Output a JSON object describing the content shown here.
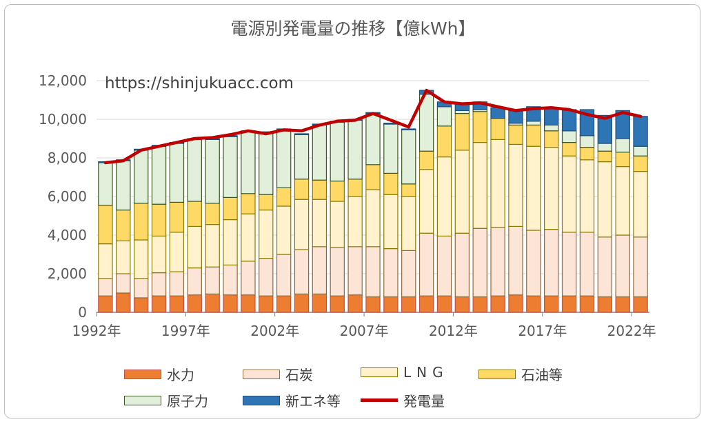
{
  "chart_data": {
    "type": "bar",
    "subtype": "stacked-bar-with-line",
    "title": "電源別発電量の推移【億kWh】",
    "watermark": "https://shinjukuacc.com",
    "ylim": [
      0,
      12000
    ],
    "yticks": [
      "0",
      "2,000",
      "4,000",
      "6,000",
      "8,000",
      "10,000",
      "12,000"
    ],
    "ytick_values": [
      0,
      2000,
      4000,
      6000,
      8000,
      10000,
      12000
    ],
    "x_tick_labels": [
      {
        "index": 0,
        "label": "1992年"
      },
      {
        "index": 5,
        "label": "1997年"
      },
      {
        "index": 10,
        "label": "2002年"
      },
      {
        "index": 15,
        "label": "2007年"
      },
      {
        "index": 20,
        "label": "2012年"
      },
      {
        "index": 25,
        "label": "2017年"
      },
      {
        "index": 30,
        "label": "2022年"
      }
    ],
    "categories": [
      "1992",
      "1993",
      "1994",
      "1995",
      "1996",
      "1997",
      "1998",
      "1999",
      "2000",
      "2001",
      "2002",
      "2003",
      "2004",
      "2005",
      "2006",
      "2007",
      "2008",
      "2009",
      "2010",
      "2011",
      "2012",
      "2013",
      "2014",
      "2015",
      "2016",
      "2017",
      "2018",
      "2019",
      "2020",
      "2021",
      "2022"
    ],
    "series": [
      {
        "name": "水力",
        "color": "#ED7D31",
        "edge": "#C0504D",
        "values": [
          850,
          1000,
          750,
          850,
          850,
          900,
          950,
          900,
          900,
          850,
          850,
          950,
          950,
          850,
          900,
          800,
          800,
          800,
          850,
          850,
          800,
          800,
          850,
          900,
          850,
          850,
          850,
          850,
          800,
          800,
          800
        ]
      },
      {
        "name": "石炭",
        "color": "#FCE4D6",
        "edge": "#8B6A3E",
        "values": [
          900,
          1000,
          1000,
          1200,
          1250,
          1400,
          1400,
          1550,
          1750,
          1950,
          2150,
          2300,
          2450,
          2500,
          2500,
          2600,
          2500,
          2400,
          3250,
          3100,
          3300,
          3550,
          3550,
          3550,
          3400,
          3450,
          3300,
          3300,
          3100,
          3200,
          3100
        ]
      },
      {
        "name": "LNG",
        "color": "#FFF2CC",
        "edge": "#8B7A00",
        "values": [
          1800,
          1700,
          2000,
          1900,
          2050,
          2150,
          2200,
          2350,
          2450,
          2500,
          2500,
          2600,
          2450,
          2400,
          2600,
          2950,
          2800,
          2800,
          3300,
          4100,
          4300,
          4450,
          4550,
          4250,
          4350,
          4250,
          3950,
          3750,
          3900,
          3550,
          3400
        ]
      },
      {
        "name": "石油等",
        "color": "#FFD966",
        "edge": "#8B7A00",
        "values": [
          2000,
          1600,
          1900,
          1650,
          1550,
          1300,
          1100,
          1150,
          1050,
          800,
          950,
          1050,
          1000,
          1050,
          900,
          1300,
          1100,
          650,
          950,
          1600,
          1900,
          1600,
          1100,
          1000,
          1100,
          850,
          700,
          650,
          550,
          750,
          800
        ]
      },
      {
        "name": "原子力",
        "color": "#E2EFDA",
        "edge": "#375623",
        "values": [
          2200,
          2550,
          2750,
          3000,
          3050,
          3200,
          3300,
          3150,
          3200,
          3200,
          3000,
          2300,
          2850,
          3050,
          3050,
          2650,
          2550,
          2800,
          2950,
          1000,
          150,
          100,
          0,
          100,
          200,
          300,
          600,
          600,
          400,
          700,
          500
        ]
      },
      {
        "name": "新エネ等",
        "color": "#2E75B6",
        "edge": "#1F4E79",
        "values": [
          50,
          50,
          50,
          50,
          50,
          50,
          50,
          50,
          50,
          50,
          50,
          50,
          50,
          50,
          50,
          50,
          50,
          50,
          200,
          250,
          350,
          400,
          550,
          650,
          750,
          900,
          1100,
          1350,
          1450,
          1450,
          1550
        ]
      }
    ],
    "line_series": {
      "name": "発電量",
      "color": "#C00000",
      "values": [
        7750,
        7850,
        8400,
        8600,
        8800,
        9000,
        9050,
        9200,
        9400,
        9250,
        9450,
        9400,
        9700,
        9900,
        9950,
        10300,
        9950,
        9600,
        11500,
        10900,
        10800,
        10850,
        10650,
        10450,
        10550,
        10600,
        10500,
        10250,
        10050,
        10350,
        10150
      ]
    },
    "legend": [
      "水力",
      "石炭",
      "LNG",
      "石油等",
      "原子力",
      "新エネ等",
      "発電量"
    ],
    "legend_placement": "bottom"
  }
}
